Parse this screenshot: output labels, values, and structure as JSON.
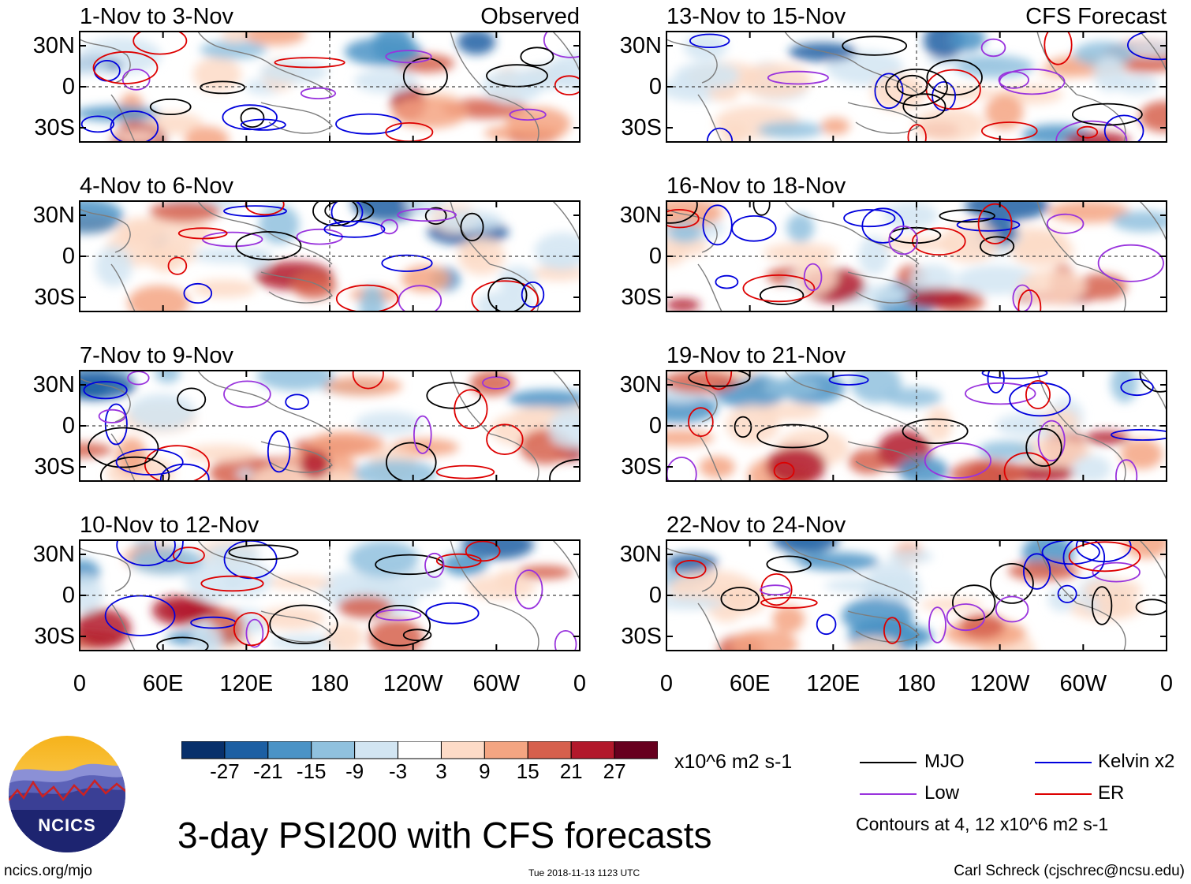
{
  "chart_data": {
    "type": "heatmap",
    "title": "3-day PSI200 with CFS forecasts",
    "units": "x10^6 m2 s-1",
    "colorbar": {
      "ticks": [
        "-27",
        "-21",
        "-15",
        "-9",
        "-3",
        "3",
        "9",
        "15",
        "21",
        "27"
      ],
      "colors": [
        "#08306b",
        "#1c5fa3",
        "#4b93c6",
        "#90c1de",
        "#d2e5f2",
        "#ffffff",
        "#fddbc7",
        "#f4a582",
        "#d6604d",
        "#b2182b",
        "#67001f"
      ]
    },
    "legend": [
      {
        "name": "MJO",
        "color": "#000000"
      },
      {
        "name": "Kelvin x2",
        "color": "#0000dd"
      },
      {
        "name": "Low",
        "color": "#9933dd"
      },
      {
        "name": "ER",
        "color": "#dd0000"
      }
    ],
    "contour_note": "Contours at 4, 12 x10^6 m2 s-1",
    "x_ticks": [
      "0",
      "60E",
      "120E",
      "180",
      "120W",
      "60W",
      "0"
    ],
    "y_ticks": [
      "30N",
      "0",
      "30S"
    ],
    "panels": [
      {
        "title": "1-Nov to 3-Nov",
        "label": "Observed"
      },
      {
        "title": "4-Nov to 6-Nov",
        "label": ""
      },
      {
        "title": "7-Nov to 9-Nov",
        "label": ""
      },
      {
        "title": "10-Nov to 12-Nov",
        "label": ""
      },
      {
        "title": "13-Nov to 15-Nov",
        "label": "CFS Forecast"
      },
      {
        "title": "16-Nov to 18-Nov",
        "label": ""
      },
      {
        "title": "19-Nov to 21-Nov",
        "label": ""
      },
      {
        "title": "22-Nov to 24-Nov",
        "label": ""
      }
    ]
  },
  "logo": {
    "text": "NCICS"
  },
  "footer": {
    "url": "ncics.org/mjo",
    "timestamp": "Tue 2018-11-13 1123 UTC",
    "credit": "Carl Schreck (cjschrec@ncsu.edu)"
  }
}
